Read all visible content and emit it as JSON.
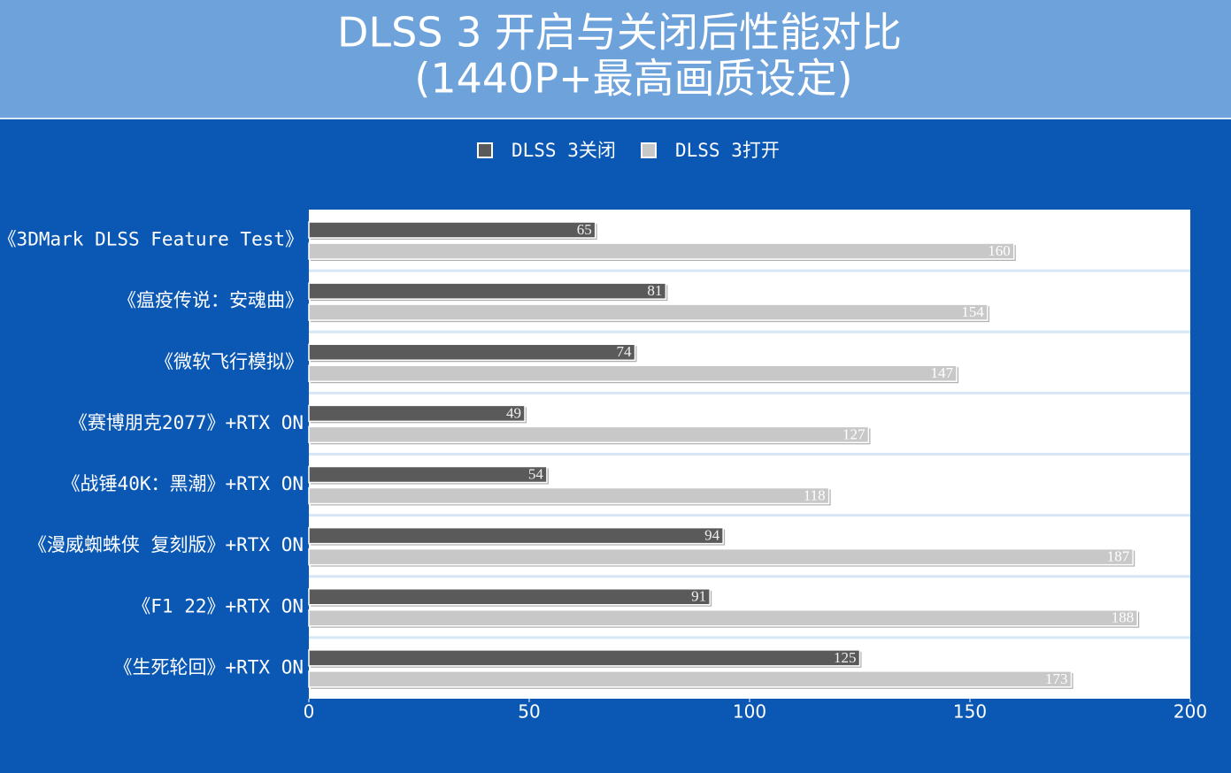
{
  "chart_data": {
    "type": "bar",
    "orientation": "horizontal",
    "title": "DLSS 3 开启与关闭后性能对比",
    "subtitle": "(1440P+最高画质设定)",
    "categories": [
      "《3DMark DLSS Feature Test》",
      "《瘟疫传说：安魂曲》",
      "《微软飞行模拟》",
      "《赛博朋克2077》+RTX ON",
      "《战锤40K：黑潮》+RTX ON",
      "《漫威蜘蛛侠 复刻版》+RTX ON",
      "《F1 22》+RTX ON",
      "《生死轮回》+RTX ON"
    ],
    "series": [
      {
        "name": "DLSS 3关闭",
        "color": "#5a5a5a",
        "values": [
          65,
          81,
          74,
          49,
          54,
          94,
          91,
          125
        ]
      },
      {
        "name": "DLSS 3打开",
        "color": "#c8c8c8",
        "values": [
          160,
          154,
          147,
          127,
          118,
          187,
          188,
          173
        ]
      }
    ],
    "xlim": [
      0,
      200
    ],
    "xticks": [
      0,
      50,
      100,
      150,
      200
    ],
    "legend": "top"
  }
}
